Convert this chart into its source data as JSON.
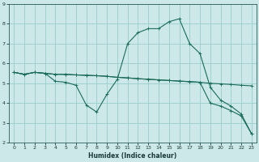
{
  "bg_color": "#cce8e8",
  "grid_color": "#99cccc",
  "line_color": "#1a6b5a",
  "xlabel": "Humidex (Indice chaleur)",
  "xlim": [
    -0.5,
    23.5
  ],
  "ylim": [
    2,
    9
  ],
  "yticks": [
    2,
    3,
    4,
    5,
    6,
    7,
    8,
    9
  ],
  "xticks": [
    0,
    1,
    2,
    3,
    4,
    5,
    6,
    7,
    8,
    9,
    10,
    11,
    12,
    13,
    14,
    15,
    16,
    17,
    18,
    19,
    20,
    21,
    22,
    23
  ],
  "curve1_x": [
    0,
    1,
    2,
    3,
    4,
    5,
    6,
    7,
    8,
    9,
    10,
    11,
    12,
    13,
    14,
    15,
    16,
    17,
    18,
    19,
    20,
    21,
    22,
    23
  ],
  "curve1_y": [
    5.55,
    5.45,
    5.55,
    5.5,
    5.45,
    5.45,
    5.42,
    5.4,
    5.38,
    5.35,
    5.3,
    5.27,
    5.23,
    5.2,
    5.17,
    5.14,
    5.11,
    5.08,
    5.05,
    5.0,
    4.97,
    4.94,
    4.9,
    4.87
  ],
  "curve2_x": [
    0,
    1,
    2,
    3,
    4,
    5,
    6,
    7,
    8,
    9,
    10,
    11,
    12,
    13,
    14,
    15,
    16,
    17,
    18,
    19,
    20,
    21,
    22,
    23
  ],
  "curve2_y": [
    5.55,
    5.45,
    5.55,
    5.5,
    5.1,
    5.05,
    4.9,
    3.9,
    3.55,
    4.45,
    5.2,
    7.0,
    7.55,
    7.75,
    7.75,
    8.1,
    8.25,
    7.0,
    6.5,
    4.8,
    4.15,
    3.85,
    3.45,
    2.45
  ],
  "curve3_x": [
    0,
    1,
    2,
    3,
    4,
    5,
    6,
    7,
    8,
    9,
    10,
    11,
    12,
    13,
    14,
    15,
    16,
    17,
    18,
    19,
    20,
    21,
    22,
    23
  ],
  "curve3_y": [
    5.55,
    5.45,
    5.55,
    5.5,
    5.45,
    5.45,
    5.42,
    5.4,
    5.38,
    5.35,
    5.3,
    5.27,
    5.23,
    5.2,
    5.17,
    5.14,
    5.11,
    5.08,
    5.05,
    4.0,
    3.85,
    3.62,
    3.35,
    2.45
  ],
  "tick_fontsize": 4.5,
  "xlabel_fontsize": 5.5,
  "marker_size": 2.5,
  "linewidth": 0.8
}
